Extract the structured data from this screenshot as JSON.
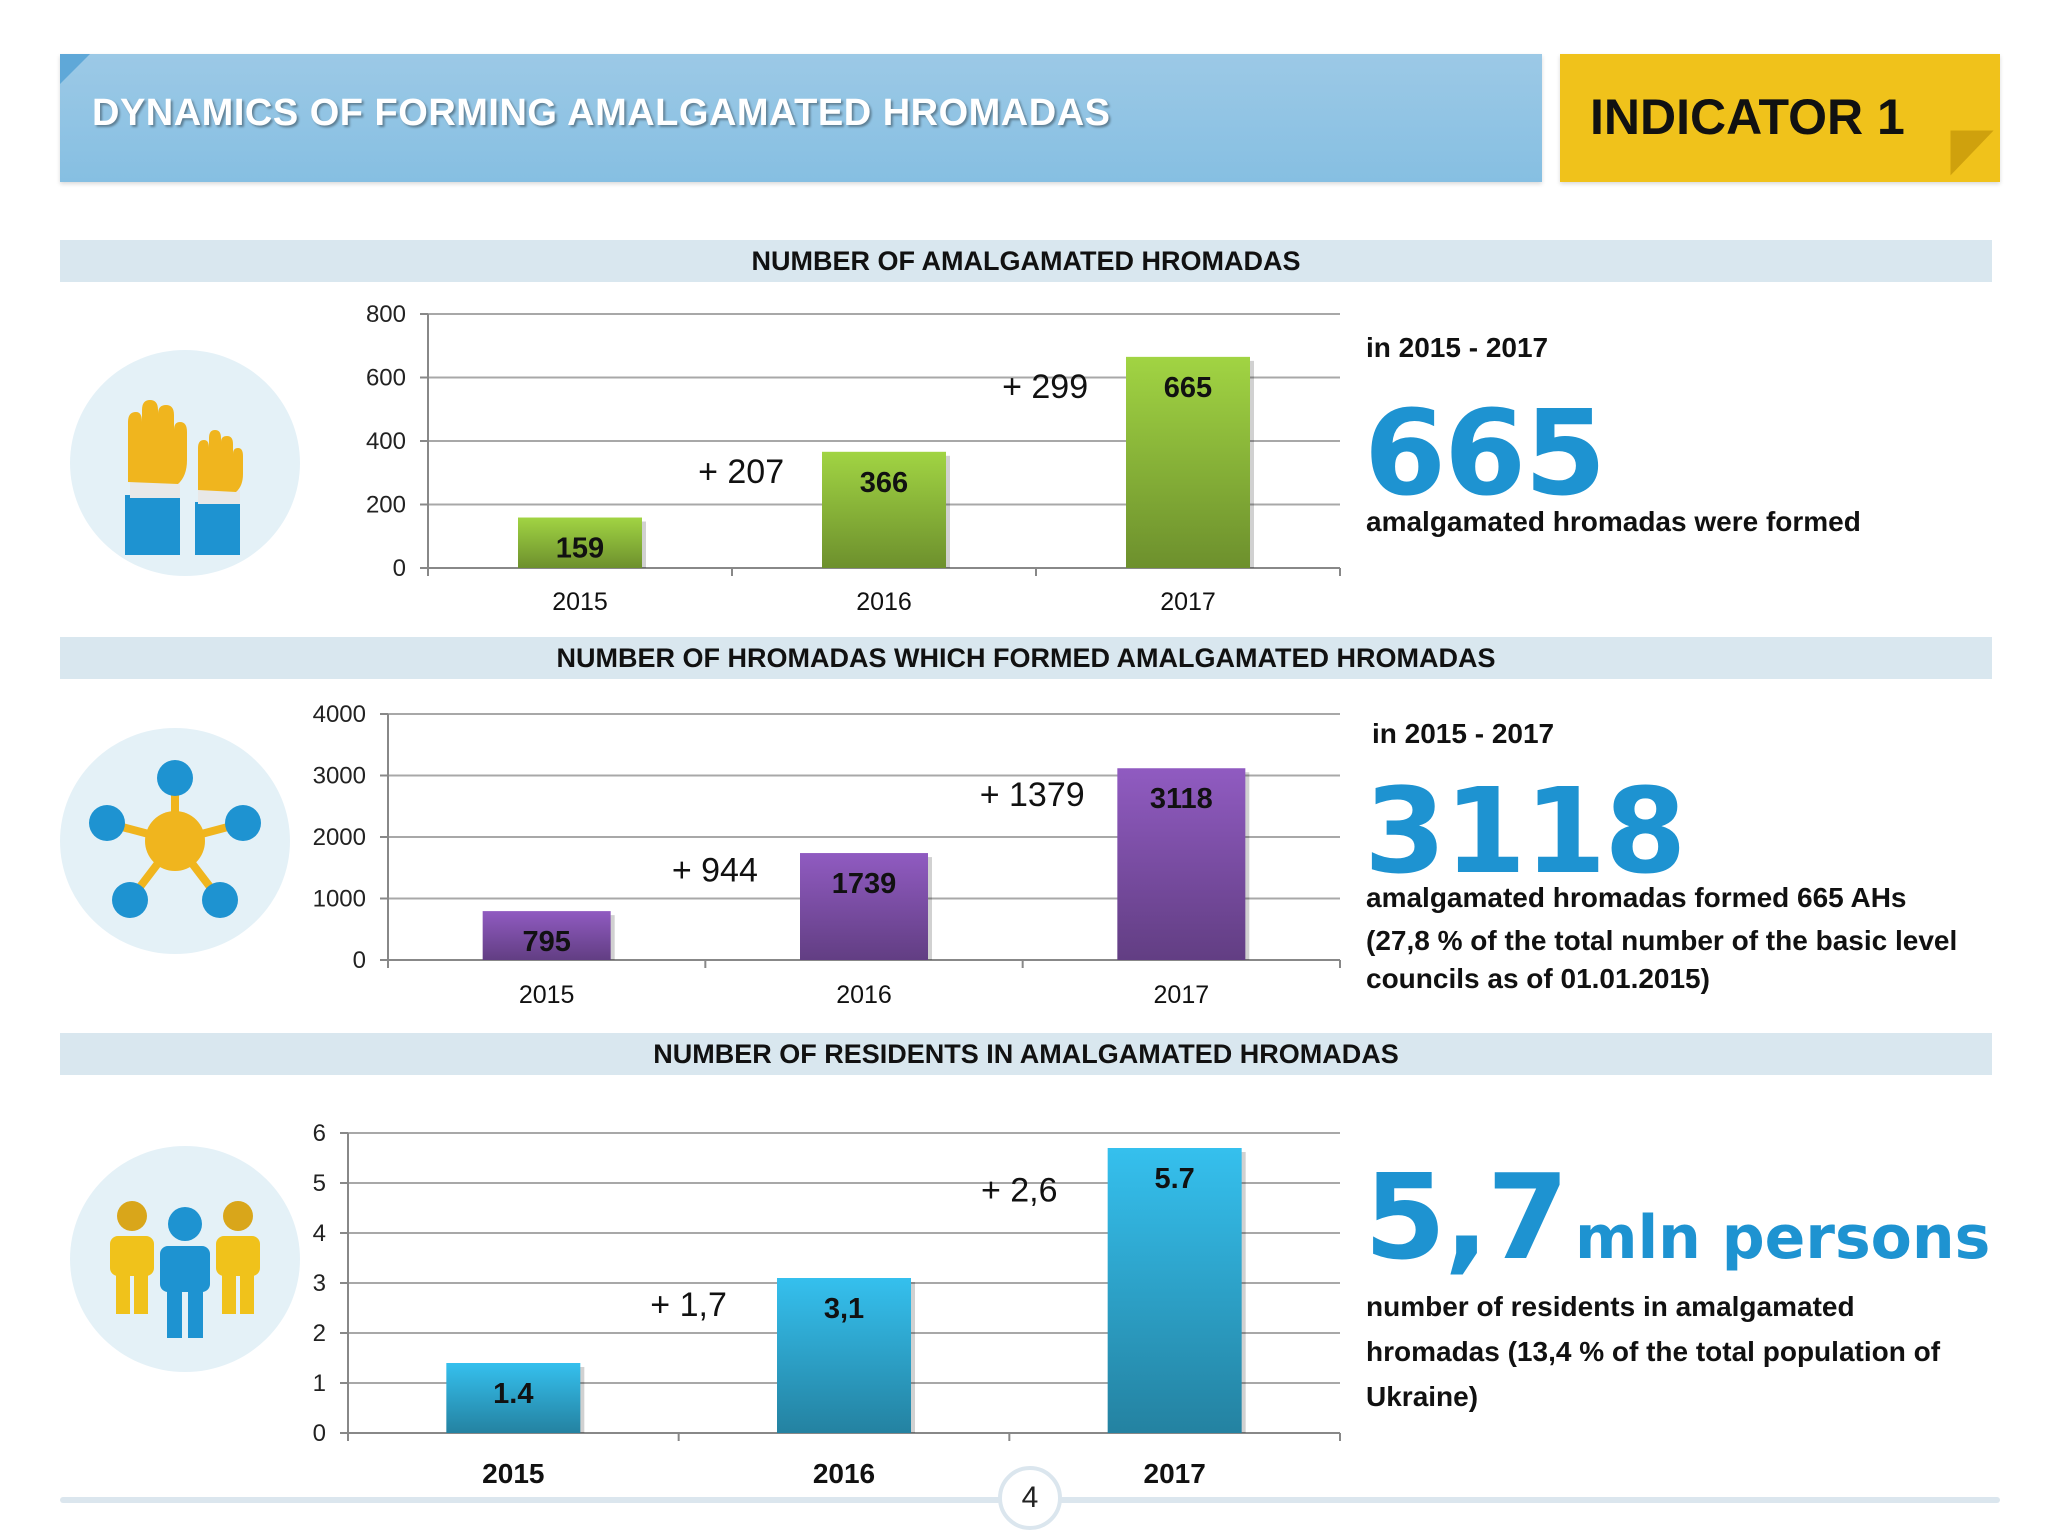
{
  "header": {
    "title": "DYNAMICS OF FORMING AMALGAMATED HROMADAS",
    "indicator": "INDICATOR 1"
  },
  "chart_data": [
    {
      "type": "bar",
      "title": "NUMBER OF AMALGAMATED HROMADAS",
      "categories": [
        "2015",
        "2016",
        "2017"
      ],
      "values": [
        159,
        366,
        665
      ],
      "data_labels": [
        "159",
        "366",
        "665"
      ],
      "increments": [
        "+ 207",
        "+ 299"
      ],
      "yticks": [
        0,
        200,
        400,
        600,
        800
      ],
      "ylim": [
        0,
        800
      ],
      "color": "#8cb83a",
      "grid": true
    },
    {
      "type": "bar",
      "title": "NUMBER OF HROMADAS WHICH FORMED AMALGAMATED HROMADAS",
      "categories": [
        "2015",
        "2016",
        "2017"
      ],
      "values": [
        795,
        1739,
        3118
      ],
      "data_labels": [
        "795",
        "1739",
        "3118"
      ],
      "increments": [
        "+ 944",
        "+ 1379"
      ],
      "yticks": [
        0,
        1000,
        2000,
        3000,
        4000
      ],
      "ylim": [
        0,
        4000
      ],
      "color": "#7d4fa8",
      "grid": true
    },
    {
      "type": "bar",
      "title": "NUMBER OF RESIDENTS IN AMALGAMATED HROMADAS",
      "categories": [
        "2015",
        "2016",
        "2017"
      ],
      "values": [
        1.4,
        3.1,
        5.7
      ],
      "data_labels": [
        "1.4",
        "3,1",
        "5.7"
      ],
      "increments": [
        "+ 1,7",
        "+ 2,6"
      ],
      "yticks": [
        0,
        1,
        2,
        3,
        4,
        5,
        6
      ],
      "ylim": [
        0,
        6
      ],
      "color": "#2ea7cf",
      "grid": true
    }
  ],
  "stats": {
    "s1": {
      "period": "in 2015 - 2017",
      "big": "665",
      "text": "amalgamated hromadas were formed"
    },
    "s2": {
      "period": "in 2015 - 2017",
      "big": "3118",
      "text1": "amalgamated hromadas  formed 665 AHs",
      "text2": "(27,8 % of the total number of the basic level councils as of 01.01.2015)"
    },
    "s3": {
      "big": "5,7",
      "unit": "mln persons",
      "text": "number of residents in amalgamated hromadas (13,4 % of the total population of Ukraine)"
    }
  },
  "icons": [
    "raised-hands-icon",
    "network-hub-icon",
    "people-group-icon"
  ],
  "footer": {
    "page": "4"
  }
}
